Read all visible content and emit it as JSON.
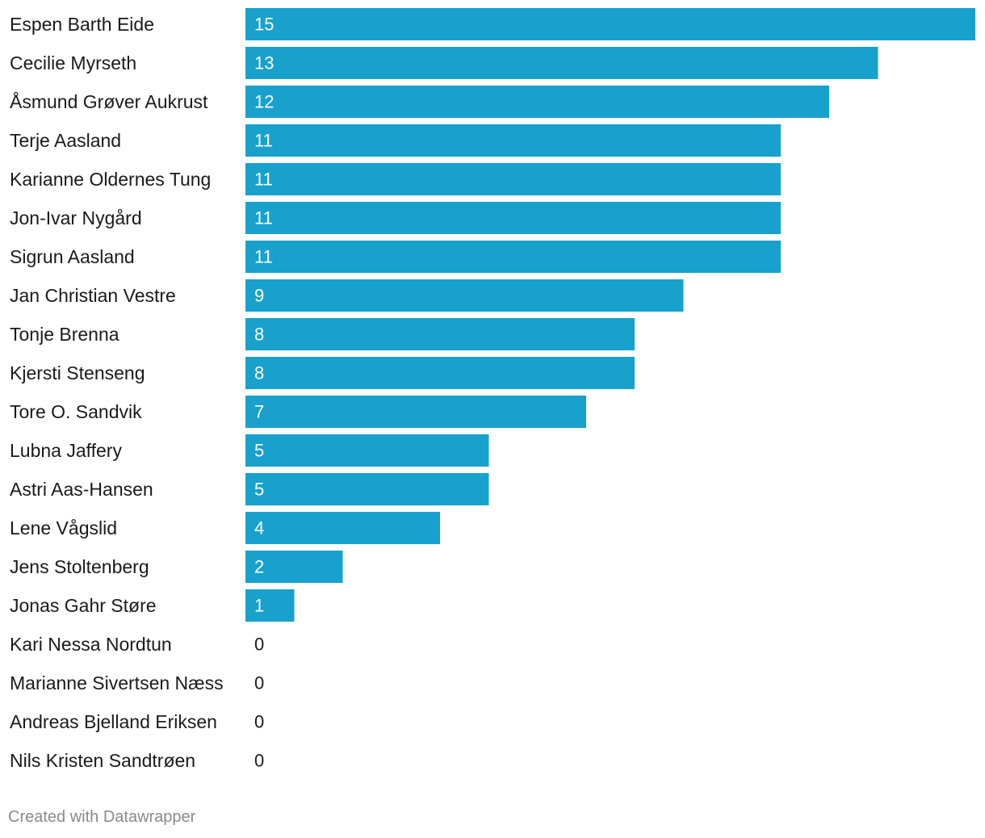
{
  "chart_data": {
    "type": "bar",
    "orientation": "horizontal",
    "categories": [
      "Espen Barth Eide",
      "Cecilie Myrseth",
      "Åsmund Grøver Aukrust",
      "Terje Aasland",
      "Karianne Oldernes Tung",
      "Jon-Ivar Nygård",
      "Sigrun Aasland",
      "Jan Christian Vestre",
      "Tonje Brenna",
      "Kjersti Stenseng",
      "Tore O. Sandvik",
      "Lubna Jaffery",
      "Astri Aas-Hansen",
      "Lene Vågslid",
      "Jens Stoltenberg",
      "Jonas Gahr Støre",
      "Kari Nessa Nordtun",
      "Marianne Sivertsen Næss",
      "Andreas Bjelland Eriksen",
      "Nils Kristen Sandtrøen"
    ],
    "values": [
      15,
      13,
      12,
      11,
      11,
      11,
      11,
      9,
      8,
      8,
      7,
      5,
      5,
      4,
      2,
      1,
      0,
      0,
      0,
      0
    ],
    "xlim": [
      0,
      15
    ],
    "data_labels": "inside-start",
    "grid": false,
    "title": "",
    "xlabel": "",
    "ylabel": "",
    "colors": {
      "bar": "#18a1cd",
      "label_on_bar": "#ffffff",
      "label_outside": "#1a1a1a"
    }
  },
  "footer": {
    "credit": "Created with Datawrapper"
  }
}
